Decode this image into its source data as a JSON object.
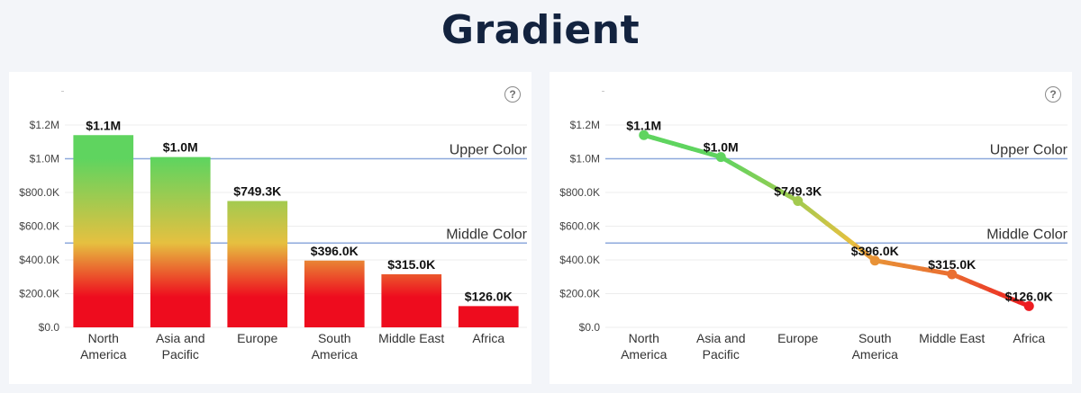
{
  "title": "Gradient",
  "colors": {
    "upper": "#5fd45f",
    "middle": "#e6c040",
    "lower": "#ee0c1e",
    "ref_line": "#8ea9dc",
    "grid": "#ececec"
  },
  "chart_data": [
    {
      "type": "bar",
      "categories": [
        [
          "North",
          "America"
        ],
        [
          "Asia and",
          "Pacific"
        ],
        [
          "Europe"
        ],
        [
          "South",
          "America"
        ],
        [
          "Middle East"
        ],
        [
          "Africa"
        ]
      ],
      "values": [
        1140000,
        1010000,
        749300,
        396000,
        315000,
        126000
      ],
      "data_labels": [
        "$1.1M",
        "$1.0M",
        "$749.3K",
        "$396.0K",
        "$315.0K",
        "$126.0K"
      ],
      "ylim": [
        0,
        1200000
      ],
      "yticks": [
        0,
        200000,
        400000,
        600000,
        800000,
        1000000,
        1200000
      ],
      "ytick_labels": [
        "$0.0",
        "$200.0K",
        "$400.0K",
        "$600.0K",
        "$800.0K",
        "$1.0M",
        "$1.2M"
      ],
      "reference_lines": [
        {
          "label": "Upper Color",
          "value": 1000000
        },
        {
          "label": "Middle Color",
          "value": 500000
        }
      ],
      "grid": true
    },
    {
      "type": "line",
      "categories": [
        [
          "North",
          "America"
        ],
        [
          "Asia and",
          "Pacific"
        ],
        [
          "Europe"
        ],
        [
          "South",
          "America"
        ],
        [
          "Middle East"
        ],
        [
          "Africa"
        ]
      ],
      "values": [
        1140000,
        1010000,
        749300,
        396000,
        315000,
        126000
      ],
      "data_labels": [
        "$1.1M",
        "$1.0M",
        "$749.3K",
        "$396.0K",
        "$315.0K",
        "$126.0K"
      ],
      "ylim": [
        0,
        1200000
      ],
      "yticks": [
        0,
        200000,
        400000,
        600000,
        800000,
        1000000,
        1200000
      ],
      "ytick_labels": [
        "$0.0",
        "$200.0K",
        "$400.0K",
        "$600.0K",
        "$800.0K",
        "$1.0M",
        "$1.2M"
      ],
      "reference_lines": [
        {
          "label": "Upper Color",
          "value": 1000000
        },
        {
          "label": "Middle Color",
          "value": 500000
        }
      ],
      "grid": true
    }
  ]
}
